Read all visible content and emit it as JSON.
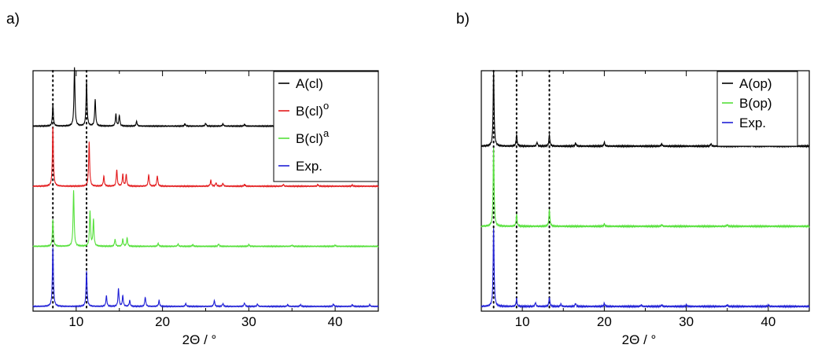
{
  "panels": [
    {
      "label": "a)"
    },
    {
      "label": "b)"
    }
  ],
  "chart_data": [
    {
      "type": "line",
      "panel": "a)",
      "xlabel": "2Θ / °",
      "xlim": [
        5,
        45
      ],
      "xticks": [
        10,
        20,
        30,
        40
      ],
      "ylabel": "",
      "yticks": [],
      "legend_position": "top-right",
      "reference_lines_x": [
        7.3,
        11.2
      ],
      "series": [
        {
          "name": "A(cl)",
          "superscript": "",
          "color": "#000000",
          "offset": 3,
          "peaks": [
            [
              7.3,
              0.35
            ],
            [
              9.8,
              1.0
            ],
            [
              11.2,
              0.75
            ],
            [
              12.2,
              0.45
            ],
            [
              14.6,
              0.2
            ],
            [
              15.0,
              0.18
            ],
            [
              17.0,
              0.08
            ],
            [
              22.6,
              0.04
            ],
            [
              25.0,
              0.05
            ],
            [
              27.0,
              0.04
            ],
            [
              29.5,
              0.03
            ],
            [
              33.0,
              0.03
            ],
            [
              37.0,
              0.03
            ],
            [
              40.0,
              0.03
            ],
            [
              43.5,
              0.02
            ]
          ]
        },
        {
          "name": "B(cl)",
          "superscript": "o",
          "color": "#e31a1c",
          "offset": 2,
          "peaks": [
            [
              7.3,
              1.0
            ],
            [
              11.5,
              0.75
            ],
            [
              13.2,
              0.17
            ],
            [
              14.7,
              0.28
            ],
            [
              15.4,
              0.2
            ],
            [
              15.8,
              0.2
            ],
            [
              18.4,
              0.2
            ],
            [
              19.4,
              0.18
            ],
            [
              25.6,
              0.1
            ],
            [
              26.2,
              0.06
            ],
            [
              27.0,
              0.05
            ],
            [
              29.5,
              0.03
            ],
            [
              34.0,
              0.03
            ],
            [
              38.0,
              0.03
            ],
            [
              42.0,
              0.02
            ]
          ]
        },
        {
          "name": "B(cl)",
          "superscript": "a",
          "color": "#55e03a",
          "offset": 1,
          "peaks": [
            [
              7.3,
              0.45
            ],
            [
              9.7,
              0.95
            ],
            [
              11.6,
              0.6
            ],
            [
              12.0,
              0.45
            ],
            [
              14.5,
              0.12
            ],
            [
              15.4,
              0.12
            ],
            [
              15.9,
              0.14
            ],
            [
              19.5,
              0.05
            ],
            [
              21.8,
              0.04
            ],
            [
              23.5,
              0.03
            ],
            [
              26.5,
              0.04
            ],
            [
              30.0,
              0.03
            ],
            [
              35.0,
              0.02
            ],
            [
              40.0,
              0.02
            ]
          ]
        },
        {
          "name": "Exp.",
          "superscript": "",
          "color": "#1f1fd6",
          "offset": 0,
          "peaks": [
            [
              7.3,
              1.0
            ],
            [
              11.2,
              0.6
            ],
            [
              13.5,
              0.18
            ],
            [
              14.9,
              0.3
            ],
            [
              15.4,
              0.18
            ],
            [
              16.2,
              0.1
            ],
            [
              18.0,
              0.16
            ],
            [
              19.6,
              0.1
            ],
            [
              22.7,
              0.05
            ],
            [
              26.0,
              0.1
            ],
            [
              27.0,
              0.05
            ],
            [
              29.5,
              0.06
            ],
            [
              31.0,
              0.04
            ],
            [
              34.5,
              0.03
            ],
            [
              36.0,
              0.03
            ],
            [
              39.8,
              0.04
            ],
            [
              42.0,
              0.03
            ],
            [
              44.0,
              0.03
            ]
          ]
        }
      ]
    },
    {
      "type": "line",
      "panel": "b)",
      "xlabel": "2Θ / °",
      "xlim": [
        5,
        45
      ],
      "xticks": [
        10,
        20,
        30,
        40
      ],
      "ylabel": "",
      "yticks": [],
      "legend_position": "top-right",
      "reference_lines_x": [
        6.5,
        9.3,
        13.3
      ],
      "series": [
        {
          "name": "A(op)",
          "superscript": "",
          "color": "#000000",
          "offset": 2,
          "peaks": [
            [
              6.5,
              0.95
            ],
            [
              9.3,
              0.15
            ],
            [
              11.8,
              0.05
            ],
            [
              13.3,
              0.15
            ],
            [
              16.5,
              0.04
            ],
            [
              20.0,
              0.05
            ],
            [
              27.0,
              0.03
            ],
            [
              33.0,
              0.03
            ],
            [
              38.0,
              0.02
            ]
          ]
        },
        {
          "name": "B(op)",
          "superscript": "",
          "color": "#55e03a",
          "offset": 1,
          "peaks": [
            [
              6.5,
              1.0
            ],
            [
              9.3,
              0.15
            ],
            [
              13.3,
              0.22
            ],
            [
              20.0,
              0.03
            ],
            [
              27.0,
              0.02
            ],
            [
              35.0,
              0.02
            ]
          ]
        },
        {
          "name": "Exp.",
          "superscript": "",
          "color": "#1f1fd6",
          "offset": 0,
          "peaks": [
            [
              6.5,
              1.0
            ],
            [
              9.3,
              0.1
            ],
            [
              11.6,
              0.05
            ],
            [
              13.3,
              0.12
            ],
            [
              14.7,
              0.03
            ],
            [
              16.5,
              0.04
            ],
            [
              20.0,
              0.04
            ],
            [
              24.5,
              0.02
            ],
            [
              27.0,
              0.02
            ],
            [
              30.0,
              0.02
            ],
            [
              35.0,
              0.02
            ],
            [
              40.0,
              0.02
            ]
          ]
        }
      ]
    }
  ]
}
